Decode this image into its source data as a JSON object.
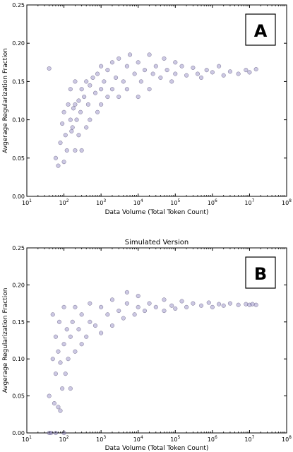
{
  "chart_data": [
    {
      "type": "scatter",
      "panel_label": "A",
      "title": "",
      "xlabel": "Data Volume (Total Token Count)",
      "ylabel": "Avgerage Regularization Fraction",
      "xscale": "log",
      "xlim": [
        10,
        100000000
      ],
      "ylim": [
        0.0,
        0.25
      ],
      "x_tick_values": [
        10,
        100,
        1000,
        10000,
        100000,
        1000000,
        10000000,
        100000000
      ],
      "x_tick_labels": [
        {
          "base": "10",
          "exp": "1"
        },
        {
          "base": "10",
          "exp": "2"
        },
        {
          "base": "10",
          "exp": "3"
        },
        {
          "base": "10",
          "exp": "4"
        },
        {
          "base": "10",
          "exp": "5"
        },
        {
          "base": "10",
          "exp": "6"
        },
        {
          "base": "10",
          "exp": "7"
        },
        {
          "base": "10",
          "exp": "8"
        }
      ],
      "y_tick_values": [
        0.0,
        0.05,
        0.1,
        0.15,
        0.2,
        0.25
      ],
      "y_tick_labels": [
        "0.00",
        "0.05",
        "0.10",
        "0.15",
        "0.20",
        "0.25"
      ],
      "grid": false,
      "marker_color": "#8e86c2",
      "marker_edge_color": "#2b2550",
      "series": [
        {
          "name": "",
          "x": [
            40,
            60,
            70,
            80,
            90,
            100,
            100,
            110,
            120,
            130,
            150,
            150,
            160,
            170,
            180,
            200,
            200,
            200,
            220,
            250,
            250,
            280,
            300,
            300,
            350,
            400,
            400,
            450,
            500,
            500,
            600,
            700,
            800,
            800,
            1000,
            1000,
            1000,
            1200,
            1500,
            1500,
            2000,
            2000,
            2500,
            3000,
            3000,
            4000,
            5000,
            5000,
            6000,
            8000,
            10000,
            10000,
            12000,
            15000,
            20000,
            20000,
            25000,
            30000,
            40000,
            50000,
            60000,
            80000,
            100000,
            100000,
            150000,
            200000,
            300000,
            400000,
            500000,
            700000,
            1000000,
            1500000,
            2000000,
            3000000,
            5000000,
            8000000,
            10000000,
            15000000
          ],
          "y": [
            0.167,
            0.05,
            0.04,
            0.07,
            0.095,
            0.045,
            0.11,
            0.08,
            0.06,
            0.12,
            0.1,
            0.14,
            0.085,
            0.09,
            0.115,
            0.06,
            0.12,
            0.15,
            0.1,
            0.08,
            0.125,
            0.11,
            0.06,
            0.14,
            0.13,
            0.09,
            0.15,
            0.12,
            0.1,
            0.145,
            0.155,
            0.135,
            0.11,
            0.16,
            0.12,
            0.14,
            0.17,
            0.15,
            0.13,
            0.165,
            0.14,
            0.175,
            0.155,
            0.13,
            0.18,
            0.15,
            0.14,
            0.17,
            0.185,
            0.16,
            0.13,
            0.175,
            0.15,
            0.165,
            0.14,
            0.185,
            0.16,
            0.17,
            0.155,
            0.18,
            0.165,
            0.15,
            0.175,
            0.16,
            0.17,
            0.158,
            0.168,
            0.16,
            0.155,
            0.165,
            0.162,
            0.17,
            0.158,
            0.163,
            0.16,
            0.165,
            0.162,
            0.166
          ]
        }
      ]
    },
    {
      "type": "scatter",
      "panel_label": "B",
      "title": "Simulated Version",
      "xlabel": "Data Volume (Total Token Count)",
      "ylabel": "Avgerage Regularization Fraction",
      "xscale": "log",
      "xlim": [
        10,
        100000000
      ],
      "ylim": [
        0.0,
        0.25
      ],
      "x_tick_values": [
        10,
        100,
        1000,
        10000,
        100000,
        1000000,
        10000000,
        100000000
      ],
      "x_tick_labels": [
        {
          "base": "10",
          "exp": "1"
        },
        {
          "base": "10",
          "exp": "2"
        },
        {
          "base": "10",
          "exp": "3"
        },
        {
          "base": "10",
          "exp": "4"
        },
        {
          "base": "10",
          "exp": "5"
        },
        {
          "base": "10",
          "exp": "6"
        },
        {
          "base": "10",
          "exp": "7"
        },
        {
          "base": "10",
          "exp": "8"
        }
      ],
      "y_tick_values": [
        0.0,
        0.05,
        0.1,
        0.15,
        0.2,
        0.25
      ],
      "y_tick_labels": [
        "0.00",
        "0.05",
        "0.10",
        "0.15",
        "0.20",
        "0.25"
      ],
      "grid": false,
      "marker_color": "#8e86c2",
      "marker_edge_color": "#2b2550",
      "series": [
        {
          "name": "",
          "x": [
            40,
            40,
            45,
            50,
            50,
            55,
            60,
            60,
            60,
            70,
            70,
            75,
            80,
            80,
            90,
            100,
            100,
            100,
            110,
            120,
            130,
            150,
            150,
            170,
            200,
            200,
            250,
            300,
            300,
            400,
            500,
            500,
            700,
            1000,
            1000,
            1500,
            2000,
            2000,
            3000,
            4000,
            5000,
            5000,
            8000,
            10000,
            10000,
            15000,
            20000,
            30000,
            50000,
            50000,
            80000,
            100000,
            150000,
            200000,
            300000,
            500000,
            800000,
            1000000,
            1500000,
            2000000,
            3000000,
            5000000,
            8000000,
            10000000,
            12000000,
            15000000
          ],
          "y": [
            0.0,
            0.05,
            0.0,
            0.1,
            0.16,
            0.04,
            0.0,
            0.13,
            0.08,
            0.035,
            0.11,
            0.15,
            0.03,
            0.095,
            0.06,
            0.0,
            0.12,
            0.17,
            0.08,
            0.14,
            0.1,
            0.06,
            0.13,
            0.15,
            0.11,
            0.17,
            0.14,
            0.12,
            0.16,
            0.13,
            0.15,
            0.175,
            0.145,
            0.135,
            0.17,
            0.16,
            0.145,
            0.18,
            0.165,
            0.155,
            0.175,
            0.19,
            0.16,
            0.17,
            0.185,
            0.165,
            0.175,
            0.17,
            0.165,
            0.18,
            0.172,
            0.168,
            0.178,
            0.17,
            0.175,
            0.172,
            0.176,
            0.17,
            0.174,
            0.172,
            0.175,
            0.173,
            0.174,
            0.173,
            0.174,
            0.173
          ]
        }
      ]
    }
  ]
}
